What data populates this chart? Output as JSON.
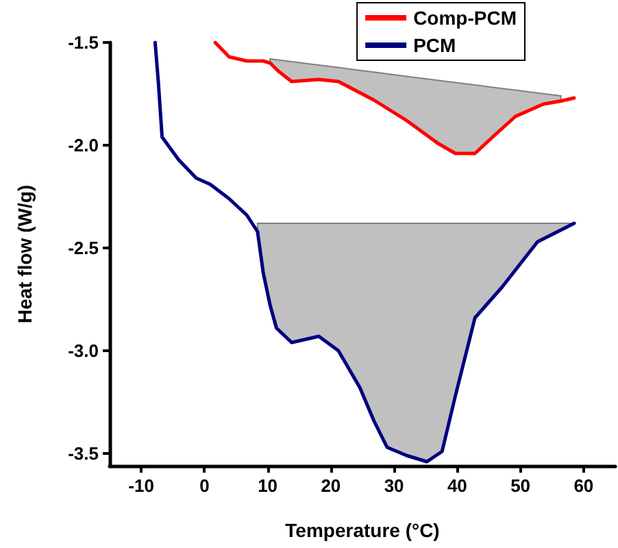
{
  "chart_data": {
    "type": "line",
    "xlabel": "Temperature (°C)",
    "ylabel": "Heat flow (W/g)",
    "xlim": [
      -15,
      65
    ],
    "xticks": [
      -10,
      0,
      10,
      20,
      30,
      40,
      50,
      60
    ],
    "ylim": [
      -3.56,
      -1.5
    ],
    "yticks": [
      -3.5,
      {
        "value": -3,
        "label": "-3.0"
      },
      -2.5,
      {
        "value": -2,
        "label": "-2.0"
      },
      -1.5
    ],
    "grid": false,
    "legend": "top right",
    "marker": "none",
    "line_style": "solid",
    "series": [
      {
        "name": "Comp-PCM",
        "color": "#ff0000",
        "x": [
          1.7,
          3.9,
          6.7,
          9.3,
          10.4,
          11.7,
          13.8,
          18.1,
          21.2,
          26.8,
          32,
          36.9,
          39.7,
          42.8,
          45.6,
          49.2,
          53.6,
          56.4,
          58.5
        ],
        "values": [
          -1.5,
          -1.57,
          -1.59,
          -1.59,
          -1.6,
          -1.64,
          -1.69,
          -1.68,
          -1.69,
          -1.78,
          -1.88,
          -1.99,
          -2.04,
          -2.04,
          -1.96,
          -1.86,
          -1.8,
          -1.785,
          -1.77
        ],
        "lower": [
          null,
          null,
          null,
          null,
          -1.6,
          -1.64,
          -1.69,
          -1.68,
          -1.69,
          -1.78,
          -1.88,
          -1.99,
          -2.04,
          -2.04,
          -1.96,
          -1.86,
          -1.8,
          -1.785,
          null
        ],
        "upper": [
          null,
          null,
          null,
          null,
          -1.58,
          -1.585,
          -1.593,
          -1.61,
          -1.622,
          -1.644,
          -1.665,
          -1.684,
          -1.695,
          -1.707,
          -1.718,
          -1.732,
          -1.749,
          -1.76,
          null
        ]
      },
      {
        "name": "PCM",
        "color": "#000080",
        "x": [
          -7.8,
          -7.3,
          -6.7,
          -4.1,
          -1.3,
          0.9,
          3.9,
          6.7,
          8.4,
          9.3,
          10.4,
          11.4,
          13.8,
          18.1,
          21.2,
          24.6,
          26.8,
          28.9,
          32,
          35.2,
          37.6,
          39.7,
          42.8,
          47.1,
          49.9,
          52.7,
          58.5
        ],
        "values": [
          -1.5,
          -1.69,
          -1.96,
          -2.07,
          -2.16,
          -2.19,
          -2.26,
          -2.34,
          -2.42,
          -2.62,
          -2.78,
          -2.89,
          -2.96,
          -2.93,
          -3.0,
          -3.18,
          -3.34,
          -3.47,
          -3.51,
          -3.54,
          -3.49,
          -3.22,
          -2.84,
          -2.69,
          -2.58,
          -2.47,
          -2.38
        ],
        "lower": [
          null,
          null,
          null,
          null,
          null,
          null,
          null,
          null,
          -2.42,
          -2.62,
          -2.78,
          -2.89,
          -2.96,
          -2.93,
          -3.0,
          -3.18,
          -3.34,
          -3.47,
          -3.51,
          -3.54,
          -3.49,
          -3.22,
          -2.84,
          -2.69,
          -2.58,
          -2.47,
          -2.38
        ],
        "upper": [
          null,
          null,
          null,
          null,
          null,
          null,
          null,
          null,
          -2.38,
          -2.38,
          -2.38,
          -2.38,
          -2.38,
          -2.38,
          -2.38,
          -2.38,
          -2.38,
          -2.38,
          -2.38,
          -2.38,
          -2.38,
          -2.38,
          -2.38,
          -2.38,
          -2.38,
          -2.38,
          -2.38
        ]
      }
    ]
  }
}
